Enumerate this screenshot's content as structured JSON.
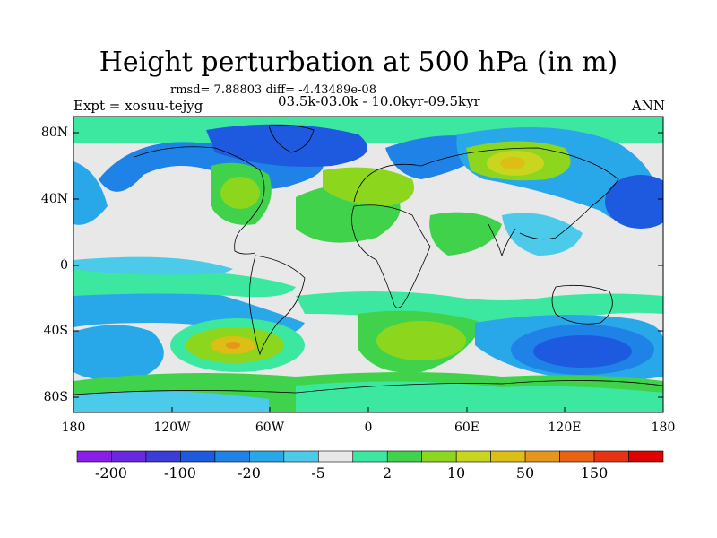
{
  "title": "Height perturbation at 500 hPa (in m)",
  "stats_line": "rmsd= 7.88803 diff= -4.43489e-08",
  "experiment": "Expt = xosuu-tejyg",
  "period": "03.5k-03.0k - 10.0kyr-09.5kyr",
  "season": "ANN",
  "lat_labels": [
    "80N",
    "40N",
    "0",
    "40S",
    "80S"
  ],
  "lon_labels": [
    "180",
    "120W",
    "60W",
    "0",
    "60E",
    "120E",
    "180"
  ],
  "colorbar": {
    "labels": [
      "-200",
      "-100",
      "-20",
      "-5",
      "2",
      "10",
      "50",
      "150"
    ],
    "colors": [
      "#8a1ee8",
      "#6a28e0",
      "#3c3cd8",
      "#1e5ae0",
      "#1e82e6",
      "#28a8e8",
      "#4ccaea",
      "#e8e8e8",
      "#3ce8a0",
      "#40d24a",
      "#8cd61e",
      "#c8d61e",
      "#dcbe14",
      "#e6961e",
      "#e86414",
      "#e83214",
      "#e00000"
    ]
  },
  "map_colors": {
    "neutral": "#e8e8e8",
    "light_blue": "#4ccaea",
    "mid_blue": "#28a8e8",
    "blue": "#1e82e6",
    "dark_blue": "#1e5ae0",
    "aqua_green": "#3ce8a0",
    "green": "#40d24a",
    "yellow_green": "#8cd61e",
    "yellow": "#c8d61e",
    "gold": "#dcbe14",
    "orange": "#e6961e"
  }
}
